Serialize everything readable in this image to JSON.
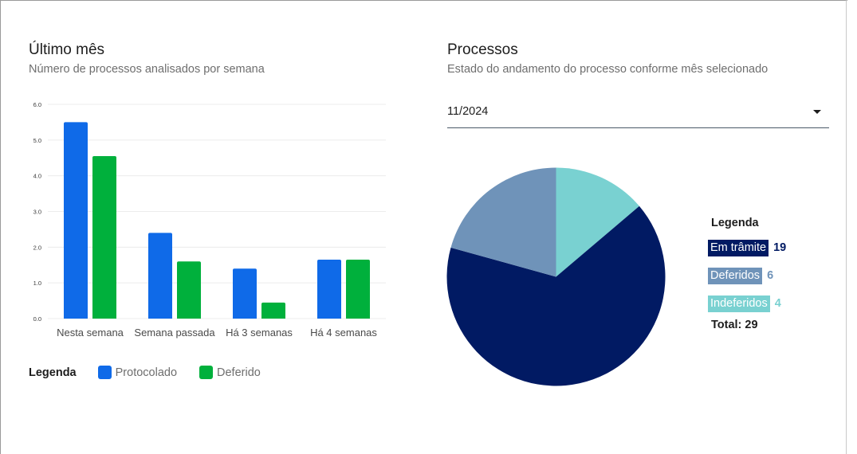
{
  "left_card": {
    "title": "Último mês",
    "subtitle": "Número de processos analisados por semana",
    "legend_title": "Legenda"
  },
  "right_card": {
    "title": "Processos",
    "subtitle": "Estado do andamento do processo conforme mês selecionado",
    "month_select": {
      "value": "11/2024"
    },
    "legend_title": "Legenda",
    "total_label": "Total: 29"
  },
  "chart_data": [
    {
      "type": "bar",
      "title": "",
      "xlabel": "",
      "ylabel": "",
      "categories": [
        "Nesta semana",
        "Semana passada",
        "Há 3 semanas",
        "Há 4 semanas"
      ],
      "series": [
        {
          "name": "Protocolado",
          "color": "#0f6ae8",
          "values": [
            5.5,
            2.4,
            1.4,
            1.65
          ]
        },
        {
          "name": "Deferido",
          "color": "#00b03c",
          "values": [
            4.55,
            1.6,
            0.45,
            1.65
          ]
        }
      ],
      "ylim": [
        0,
        6
      ],
      "yticks": [
        "0.0",
        "1.0",
        "2.0",
        "3.0",
        "4.0",
        "5.0",
        "6.0"
      ],
      "grid": true,
      "legend": "bottom-left"
    },
    {
      "type": "pie",
      "slices": [
        {
          "label": "Indeferidos",
          "value": 4,
          "color": "#79d1d1"
        },
        {
          "label": "Em trâmite",
          "value": 19,
          "color": "#011a63"
        },
        {
          "label": "Deferidos",
          "value": 6,
          "color": "#6f93b9"
        }
      ],
      "legend": "right"
    }
  ],
  "pie_legend": [
    {
      "label": "Em trâmite",
      "count": "19",
      "bg": "#011a63",
      "fg": "#011a63"
    },
    {
      "label": "Deferidos",
      "count": "6",
      "bg": "#6f93b9",
      "fg": "#6f93b9"
    },
    {
      "label": "Indeferidos",
      "count": "4",
      "bg": "#79d1d1",
      "fg": "#79d1d1"
    }
  ]
}
